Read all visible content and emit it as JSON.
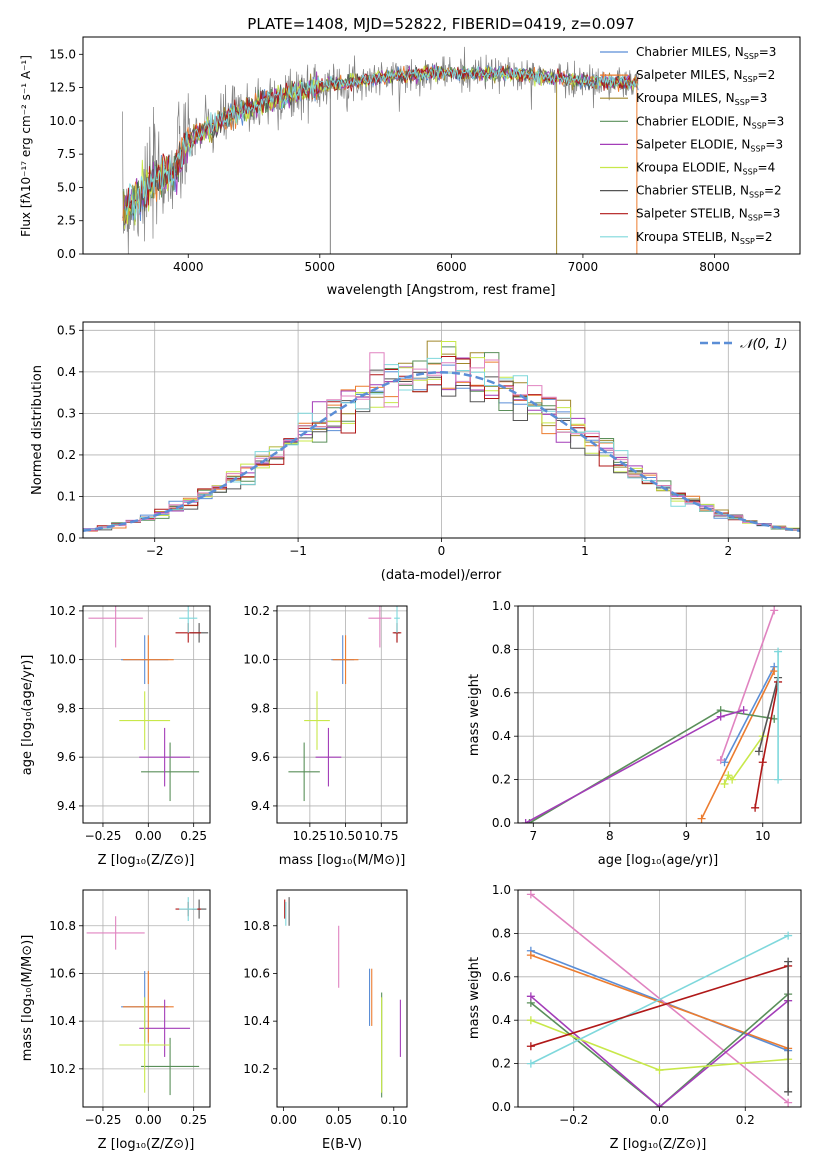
{
  "chart_data": [
    {
      "type": "line",
      "title": "PLATE=1408, MJD=52822, FIBERID=0419, z=0.097",
      "xlabel": "wavelength [Angstrom, rest frame]",
      "ylabel": "Flux [fλ10⁻¹⁷ erg cm⁻² s⁻¹ A⁻¹]",
      "xlim": [
        3200,
        8650
      ],
      "ylim": [
        0,
        16.3
      ],
      "xticks": [
        "4000",
        "5000",
        "6000",
        "7000",
        "8000"
      ],
      "yticks": [
        "0.0",
        "2.5",
        "5.0",
        "7.5",
        "10.0",
        "12.5",
        "15.0"
      ],
      "legend_position": "right",
      "series": [
        {
          "name": "Chabrier MILES, N_SSP=3",
          "color": "#5b8ed6"
        },
        {
          "name": "Salpeter MILES, N_SSP=2",
          "color": "#ec7c2f"
        },
        {
          "name": "Kroupa MILES, N_SSP=3",
          "color": "#a0872b"
        },
        {
          "name": "Chabrier ELODIE, N_SSP=3",
          "color": "#5a8f5a"
        },
        {
          "name": "Salpeter ELODIE, N_SSP=3",
          "color": "#a33db8"
        },
        {
          "name": "Kroupa ELODIE, N_SSP=4",
          "color": "#c8e84a"
        },
        {
          "name": "Chabrier STELIB, N_SSP=2",
          "color": "#555555"
        },
        {
          "name": "Salpeter STELIB, N_SSP=3",
          "color": "#b01818"
        },
        {
          "name": "Kroupa STELIB, N_SSP=2",
          "color": "#7fd8dc"
        }
      ],
      "continuum": {
        "x": [
          3500,
          3700,
          3900,
          4000,
          4300,
          4600,
          5000,
          5500,
          5900,
          6500,
          7000,
          7400
        ],
        "y": [
          3.0,
          5.0,
          6.5,
          8.5,
          10.3,
          11.5,
          12.6,
          13.3,
          13.6,
          13.5,
          13.0,
          12.8
        ]
      }
    },
    {
      "type": "step",
      "xlabel": "(data-model)/error",
      "ylabel": "Normed distribution",
      "xlim": [
        -2.5,
        2.5
      ],
      "ylim": [
        0,
        0.52
      ],
      "grid": true,
      "xticks": [
        "−2",
        "−1",
        "0",
        "1",
        "2"
      ],
      "yticks": [
        "0.0",
        "0.1",
        "0.2",
        "0.3",
        "0.4",
        "0.5"
      ],
      "legend": "𝒩(0, 1)",
      "legend_position": "top-right",
      "reference_curve": "normal(0,1)"
    },
    {
      "type": "scatter",
      "xlabel": "Z [log₁₀(Z/Z⊙)]",
      "ylabel": "age  [log₁₀(age/yr)]",
      "xlim": [
        -0.36,
        0.34
      ],
      "ylim": [
        9.33,
        10.22
      ],
      "xticks": [
        "−0.25",
        "0.00",
        "0.25"
      ],
      "yticks": [
        "9.4",
        "9.6",
        "9.8",
        "10.0",
        "10.2"
      ],
      "grid": true
    },
    {
      "type": "scatter",
      "xlabel": "mass [log₁₀(M/M⊙)]",
      "xlim": [
        10.02,
        10.93
      ],
      "ylim": [
        9.33,
        10.22
      ],
      "xticks": [
        "10.25",
        "10.50",
        "10.75"
      ],
      "yticks": [
        "9.4",
        "9.6",
        "9.8",
        "10.0",
        "10.2"
      ],
      "grid": true
    },
    {
      "type": "line",
      "xlabel": "age  [log₁₀(age/yr)]",
      "ylabel": "mass weight",
      "xlim": [
        6.8,
        10.5
      ],
      "ylim": [
        0,
        1.0
      ],
      "xticks": [
        "7",
        "8",
        "9",
        "10"
      ],
      "yticks": [
        "0.0",
        "0.2",
        "0.4",
        "0.6",
        "0.8",
        "1.0"
      ],
      "grid": true,
      "series": [
        {
          "name": "",
          "x": [
            9.5,
            10.15
          ],
          "y": [
            0.28,
            0.72
          ],
          "color": "#5b8ed6"
        },
        {
          "name": "",
          "x": [
            9.2,
            10.15
          ],
          "y": [
            0.02,
            0.7
          ],
          "color": "#ec7c2f"
        },
        {
          "name": "",
          "x": [
            9.45,
            10.15
          ],
          "y": [
            0.29,
            0.98
          ],
          "color": "#e083c0"
        },
        {
          "name": "",
          "x": [
            6.95,
            9.45,
            10.15
          ],
          "y": [
            0.0,
            0.52,
            0.48
          ],
          "color": "#5a8f5a"
        },
        {
          "name": "",
          "x": [
            6.9,
            9.45,
            9.75
          ],
          "y": [
            0.0,
            0.49,
            0.52
          ],
          "color": "#a33db8"
        },
        {
          "name": "",
          "x": [
            9.5,
            9.55,
            9.6,
            10.0
          ],
          "y": [
            0.18,
            0.22,
            0.2,
            0.4
          ],
          "color": "#c8e84a"
        },
        {
          "name": "",
          "x": [
            9.95,
            10.2
          ],
          "y": [
            0.33,
            0.67
          ],
          "color": "#555555"
        },
        {
          "name": "",
          "x": [
            9.9,
            10.0,
            10.2
          ],
          "y": [
            0.07,
            0.28,
            0.65
          ],
          "color": "#b01818"
        },
        {
          "name": "",
          "x": [
            10.2,
            10.2
          ],
          "y": [
            0.2,
            0.79
          ],
          "color": "#7fd8dc"
        }
      ]
    },
    {
      "type": "scatter",
      "xlabel": "Z [log₁₀(Z/Z⊙)]",
      "ylabel": "mass [log₁₀(M/M⊙)]",
      "xlim": [
        -0.36,
        0.34
      ],
      "ylim": [
        10.04,
        10.95
      ],
      "xticks": [
        "−0.25",
        "0.00",
        "0.25"
      ],
      "yticks": [
        "10.2",
        "10.4",
        "10.6",
        "10.8"
      ],
      "grid": true
    },
    {
      "type": "scatter",
      "xlabel": "E(B-V)",
      "xlim": [
        -0.006,
        0.112
      ],
      "ylim": [
        10.04,
        10.95
      ],
      "xticks": [
        "0.00",
        "0.05",
        "0.10"
      ],
      "yticks": [
        "10.2",
        "10.4",
        "10.6",
        "10.8"
      ]
    },
    {
      "type": "line",
      "xlabel": "Z [log₁₀(Z/Z⊙)]",
      "ylabel": "mass weight",
      "xlim": [
        -0.33,
        0.33
      ],
      "ylim": [
        0,
        1.0
      ],
      "xticks": [
        "−0.2",
        "0.0",
        "0.2"
      ],
      "yticks": [
        "0.0",
        "0.2",
        "0.4",
        "0.6",
        "0.8",
        "1.0"
      ],
      "grid": true,
      "series": [
        {
          "name": "",
          "x": [
            -0.3,
            0.3
          ],
          "y": [
            0.72,
            0.26
          ],
          "color": "#5b8ed6"
        },
        {
          "name": "",
          "x": [
            -0.3,
            0.3
          ],
          "y": [
            0.7,
            0.27
          ],
          "color": "#ec7c2f"
        },
        {
          "name": "",
          "x": [
            -0.3,
            0.3
          ],
          "y": [
            0.98,
            0.02
          ],
          "color": "#e083c0"
        },
        {
          "name": "",
          "x": [
            -0.3,
            0.0,
            0.3
          ],
          "y": [
            0.48,
            0.0,
            0.52
          ],
          "color": "#5a8f5a"
        },
        {
          "name": "",
          "x": [
            -0.3,
            0.0,
            0.3
          ],
          "y": [
            0.51,
            0.0,
            0.49
          ],
          "color": "#a33db8"
        },
        {
          "name": "",
          "x": [
            -0.3,
            0.0,
            0.3
          ],
          "y": [
            0.4,
            0.17,
            0.22
          ],
          "color": "#c8e84a"
        },
        {
          "name": "",
          "x": [
            -0.3,
            0.3
          ],
          "y": [
            0.2,
            0.79
          ],
          "color": "#7fd8dc"
        },
        {
          "name": "",
          "x": [
            -0.3,
            0.3
          ],
          "y": [
            0.28,
            0.65
          ],
          "color": "#b01818"
        },
        {
          "name": "",
          "x": [
            0.3,
            0.3
          ],
          "y": [
            0.07,
            0.67
          ],
          "color": "#555555"
        }
      ]
    }
  ]
}
